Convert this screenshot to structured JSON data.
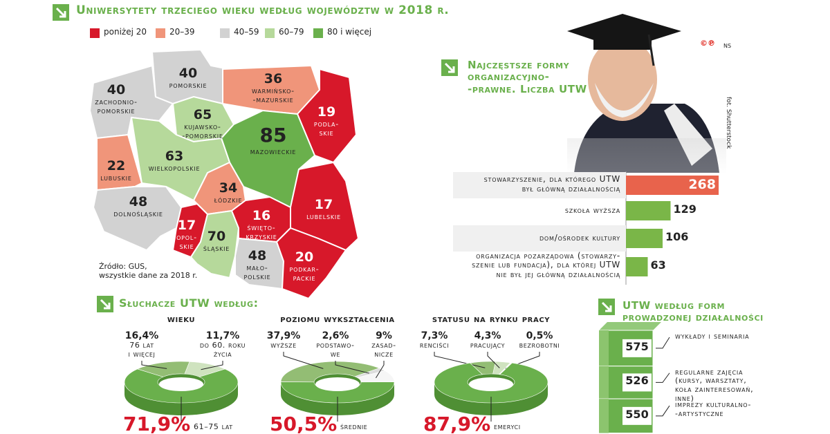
{
  "header": {
    "title": "Uniwersytety trzeciego wieku według województw w 2018 r."
  },
  "map": {
    "legend": [
      {
        "label": "poniżej 20",
        "color": "#d7182a"
      },
      {
        "label": "20–39",
        "color": "#f0957a"
      },
      {
        "label": "40–59",
        "color": "#d2d2d2"
      },
      {
        "label": "60–79",
        "color": "#b6d99b"
      },
      {
        "label": "80 i więcej",
        "color": "#6ab04c"
      }
    ],
    "regions": [
      {
        "name": "zachodnio-\npomorskie",
        "value": 40,
        "color": "#d2d2d2"
      },
      {
        "name": "pomorskie",
        "value": 40,
        "color": "#d2d2d2"
      },
      {
        "name": "warmińsko-\n-mazurskie",
        "value": 36,
        "color": "#f0957a"
      },
      {
        "name": "podla-\nskie",
        "value": 19,
        "color": "#d7182a"
      },
      {
        "name": "kujawsko-\n-pomorskie",
        "value": 65,
        "color": "#b6d99b"
      },
      {
        "name": "mazowieckie",
        "value": 85,
        "color": "#6ab04c"
      },
      {
        "name": "wielkopolskie",
        "value": 63,
        "color": "#b6d99b"
      },
      {
        "name": "lubuskie",
        "value": 22,
        "color": "#f0957a"
      },
      {
        "name": "dolnośląskie",
        "value": 48,
        "color": "#d2d2d2"
      },
      {
        "name": "łódzkie",
        "value": 34,
        "color": "#f0957a"
      },
      {
        "name": "opol-\nskie",
        "value": 17,
        "color": "#d7182a"
      },
      {
        "name": "śląskie",
        "value": 70,
        "color": "#b6d99b"
      },
      {
        "name": "święto-\nkrzyskie",
        "value": 16,
        "color": "#d7182a"
      },
      {
        "name": "lubelskie",
        "value": 17,
        "color": "#d7182a"
      },
      {
        "name": "mało-\npolskie",
        "value": 48,
        "color": "#d2d2d2"
      },
      {
        "name": "podkar-\npackie",
        "value": 20,
        "color": "#d7182a"
      }
    ],
    "source": "Źródło: GUS,\nwszystkie dane za 2018 r."
  },
  "photo": {
    "credit": "fot. Shutterstock",
    "agency": "NS"
  },
  "listeners": {
    "title": "Słuchacze UTW według:"
  },
  "chart_data": [
    {
      "type": "hbar",
      "title": "Najczęstsze formy\norganizacyjno-\n-prawne. Liczba UTW",
      "categories": [
        "stowarzyszenie, dla którego UTW\nbył główną działalnością",
        "szkoła wyższa",
        "dom/ośrodek kultury",
        "organizacja pozarządowa (stowarzy-\nszenie lub fundacja), dla której UTW\nnie był jej główną działalnością"
      ],
      "values": [
        268,
        129,
        106,
        63
      ],
      "colors": [
        "#e8634c",
        "#7ab648",
        "#7ab648",
        "#7ab648"
      ]
    },
    {
      "type": "donut",
      "title": "wieku",
      "categories": [
        "76 lat\ni więcej",
        "do 60. roku\nżycia",
        "61–75 lat"
      ],
      "values": [
        16.4,
        11.7,
        71.9
      ],
      "value_labels": [
        "16,4%",
        "11,7%",
        "71,9%"
      ],
      "colors": [
        "#93bd74",
        "#cfe3bf",
        "#6ab04c"
      ]
    },
    {
      "type": "donut",
      "title": "poziomu wykształcenia",
      "categories": [
        "wyższe",
        "podstawo-\nwe",
        "zasad-\nnicze",
        "średnie"
      ],
      "values": [
        37.9,
        2.6,
        9,
        50.5
      ],
      "value_labels": [
        "37,9%",
        "2,6%",
        "9%",
        "50,5%"
      ],
      "colors": [
        "#93bd74",
        "#dddddd",
        "#f6f6f6",
        "#6ab04c"
      ]
    },
    {
      "type": "donut",
      "title": "statusu na rynku pracy",
      "categories": [
        "renciści",
        "pracujący",
        "bezrobotni",
        "emeryci"
      ],
      "values": [
        7.3,
        4.3,
        0.5,
        87.9
      ],
      "value_labels": [
        "7,3%",
        "4,3%",
        "0,5%",
        "87,9%"
      ],
      "colors": [
        "#93bd74",
        "#cfe3bf",
        "#ffffff",
        "#6ab04c"
      ]
    },
    {
      "type": "stack",
      "title": "UTW według form\nprowadzonej działalności",
      "categories": [
        "wykłady i seminaria",
        "regularne zajęcia\n(kursy, warsztaty,\nkoła zainteresowań,\ninne)",
        "imprezy kulturalno-\n-artystyczne"
      ],
      "values": [
        575,
        526,
        550
      ],
      "color": "#6ab04c"
    }
  ]
}
